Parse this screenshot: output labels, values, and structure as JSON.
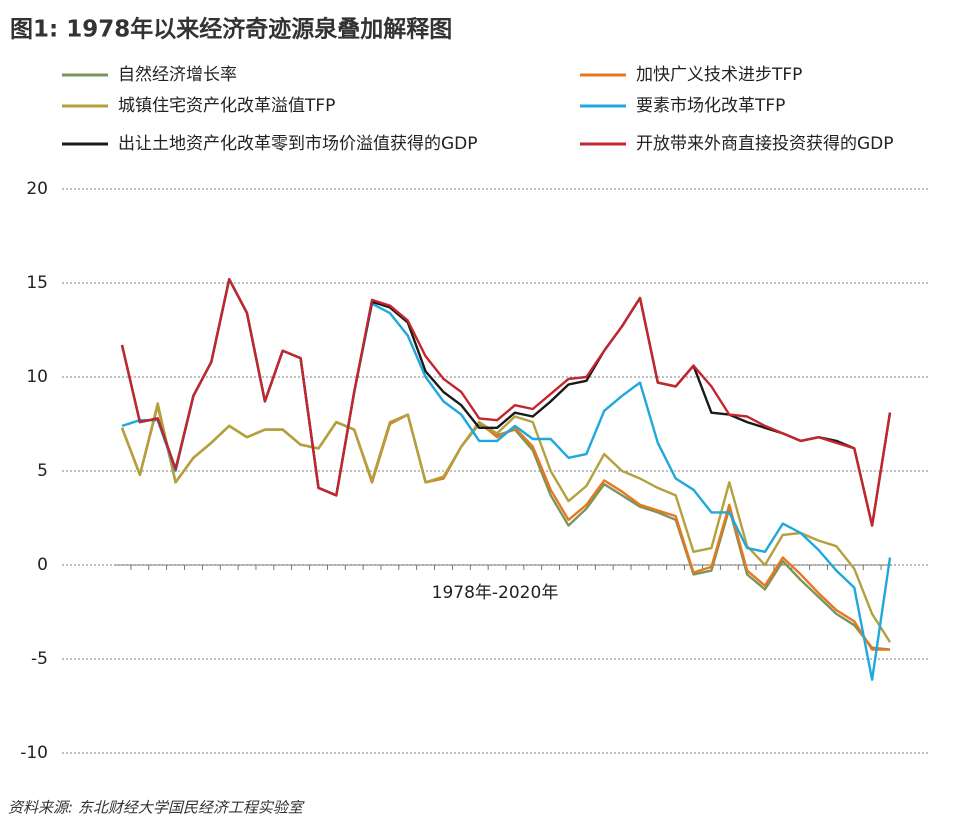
{
  "chart_data": {
    "type": "line",
    "title": "图1: 1978年以来经济奇迹源泉叠加解释图",
    "x_label": "1978年-2020年",
    "source": "资料来源: 东北财经大学国民经济工程实验室",
    "categories": [
      null,
      null,
      null,
      null,
      null,
      null,
      null,
      null,
      null,
      null,
      null,
      null,
      null,
      null,
      null,
      null,
      null,
      null,
      null,
      null,
      null,
      null,
      null,
      null,
      null,
      null,
      null,
      null,
      null,
      null,
      null,
      null,
      null,
      null,
      null,
      null,
      null,
      null,
      null,
      null,
      null,
      null,
      null,
      null
    ],
    "ylim": [
      -10,
      20
    ],
    "yticks": [
      20,
      15,
      10,
      5,
      0,
      -5,
      -10
    ],
    "grid": true,
    "series": [
      {
        "name": "自然经济增长率",
        "color": "#7a955c",
        "values": [
          7.3,
          4.8,
          8.5,
          4.4,
          5.7,
          6.5,
          7.4,
          6.8,
          7.2,
          7.2,
          6.4,
          6.2,
          7.6,
          7.2,
          4.4,
          7.5,
          8.0,
          4.4,
          4.6,
          6.3,
          7.5,
          6.9,
          7.2,
          6.1,
          3.7,
          2.1,
          3.0,
          4.3,
          3.7,
          3.1,
          2.8,
          2.4,
          -0.5,
          -0.3,
          3.0,
          -0.5,
          -1.3,
          0.2,
          -0.8,
          -1.7,
          -2.6,
          -3.2,
          -4.4,
          -4.5
        ]
      },
      {
        "name": "加快广义技术进步TFP",
        "color": "#e8781e",
        "values": [
          7.3,
          4.8,
          8.5,
          4.4,
          5.7,
          6.5,
          7.4,
          6.8,
          7.2,
          7.2,
          6.4,
          6.2,
          7.6,
          7.2,
          4.4,
          7.5,
          8.0,
          4.4,
          4.6,
          6.3,
          7.6,
          6.8,
          7.3,
          6.3,
          4.0,
          2.4,
          3.2,
          4.5,
          3.9,
          3.2,
          2.9,
          2.6,
          -0.4,
          -0.1,
          3.2,
          -0.3,
          -1.1,
          0.4,
          -0.5,
          -1.5,
          -2.4,
          -3.0,
          -4.5,
          -4.5
        ]
      },
      {
        "name": "城镇住宅资产化改革溢值TFP",
        "color": "#b3a03e",
        "values": [
          7.3,
          4.8,
          8.6,
          4.4,
          5.7,
          6.5,
          7.4,
          6.8,
          7.2,
          7.2,
          6.4,
          6.2,
          7.6,
          7.2,
          4.5,
          7.6,
          8.0,
          4.4,
          4.7,
          6.3,
          7.6,
          7.0,
          7.9,
          7.6,
          5.0,
          3.4,
          4.2,
          5.9,
          5.0,
          4.6,
          4.1,
          3.7,
          0.7,
          0.9,
          4.4,
          1.0,
          0.0,
          1.6,
          1.7,
          1.3,
          1.0,
          -0.2,
          -2.6,
          -4.1
        ]
      },
      {
        "name": "要素市场化改革TFP",
        "color": "#1fa8dc",
        "values": [
          7.4,
          7.7,
          7.7,
          5.0,
          9.0,
          10.8,
          15.2,
          13.4,
          8.7,
          11.4,
          11.0,
          4.1,
          3.7,
          9.2,
          13.9,
          13.4,
          12.2,
          10.0,
          8.7,
          8.0,
          6.6,
          6.6,
          7.4,
          6.7,
          6.7,
          5.7,
          5.9,
          8.2,
          9.0,
          9.7,
          6.5,
          4.6,
          4.0,
          2.8,
          2.8,
          0.9,
          0.7,
          2.2,
          1.7,
          0.8,
          -0.3,
          -1.2,
          -6.1,
          0.4
        ]
      },
      {
        "name": "出让土地资产化改革零到市场价溢值获得的GDP",
        "color": "#1a1a1a",
        "values": [
          11.7,
          7.6,
          7.8,
          5.1,
          9.0,
          10.8,
          15.2,
          13.4,
          8.7,
          11.4,
          11.0,
          4.1,
          3.7,
          9.2,
          14.0,
          13.7,
          12.9,
          10.3,
          9.2,
          8.5,
          7.3,
          7.3,
          8.1,
          7.9,
          8.7,
          9.6,
          9.8,
          11.4,
          12.7,
          14.2,
          9.7,
          9.5,
          10.6,
          8.1,
          8.0,
          7.6,
          7.3,
          7.0,
          6.6,
          6.8,
          6.6,
          6.2,
          2.1,
          8.1
        ]
      },
      {
        "name": "开放带来外商直接投资获得的GDP",
        "color": "#c4262e",
        "values": [
          11.7,
          7.6,
          7.8,
          5.1,
          9.0,
          10.8,
          15.2,
          13.4,
          8.7,
          11.4,
          11.0,
          4.1,
          3.7,
          9.2,
          14.1,
          13.8,
          13.0,
          11.1,
          9.9,
          9.2,
          7.8,
          7.7,
          8.5,
          8.3,
          9.1,
          9.9,
          10.0,
          11.4,
          12.7,
          14.2,
          9.7,
          9.5,
          10.6,
          9.5,
          8.0,
          7.9,
          7.4,
          7.0,
          6.6,
          6.8,
          6.5,
          6.2,
          2.1,
          8.1
        ]
      }
    ]
  }
}
